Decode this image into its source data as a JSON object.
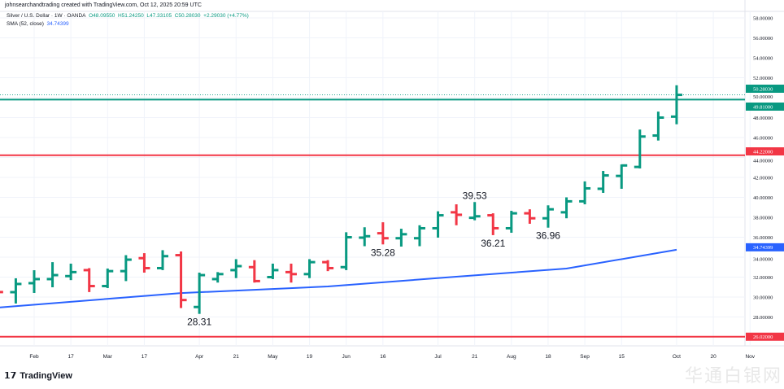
{
  "header": {
    "credit": "johnsearchandtrading created with TradingView.com, Oct 12, 2025 20:59 UTC",
    "symbol": "Silver / U.S. Dollar · 1W · OANDA",
    "open": "O48.09550",
    "high": "H51.24250",
    "low": "L47.33105",
    "close": "C50.28030",
    "change": "+2.29030 (+4.77%)",
    "sma_label": "SMA (52, close)",
    "sma_value": "34.74399"
  },
  "footer": {
    "logo": "TradingView",
    "watermark": "华通白银网"
  },
  "colors": {
    "up": "#089981",
    "down": "#f23645",
    "sma": "#2962ff",
    "resistance": "#089981",
    "support": "#f23645"
  },
  "chart_data": {
    "type": "ohlc",
    "title": "Silver / U.S. Dollar · 1W · OANDA",
    "ylim": [
      25,
      59
    ],
    "y_ticks": [
      "58.00000",
      "56.00000",
      "54.00000",
      "52.00000",
      "50.00000",
      "48.00000",
      "46.00000",
      "44.00000",
      "42.00000",
      "40.00000",
      "38.00000",
      "36.00000",
      "34.00000",
      "32.00000",
      "30.00000",
      "28.00000"
    ],
    "x_ticks": [
      {
        "w": 0,
        "label": "Feb"
      },
      {
        "w": 2,
        "label": "17"
      },
      {
        "w": 4,
        "label": "Mar"
      },
      {
        "w": 6,
        "label": "17"
      },
      {
        "w": 9,
        "label": "Apr"
      },
      {
        "w": 11,
        "label": "21"
      },
      {
        "w": 13,
        "label": "May"
      },
      {
        "w": 15,
        "label": "19"
      },
      {
        "w": 17,
        "label": "Jun"
      },
      {
        "w": 19,
        "label": "16"
      },
      {
        "w": 22,
        "label": "Jul"
      },
      {
        "w": 24,
        "label": "21"
      },
      {
        "w": 26,
        "label": "Aug"
      },
      {
        "w": 28,
        "label": "18"
      },
      {
        "w": 30,
        "label": "Sep"
      },
      {
        "w": 32,
        "label": "15"
      },
      {
        "w": 35,
        "label": "Oct"
      },
      {
        "w": 37,
        "label": "20"
      },
      {
        "w": 39,
        "label": "Nov"
      }
    ],
    "bars": [
      {
        "w": -2,
        "o": 30.6,
        "h": 30.9,
        "l": 30.3,
        "c": 30.5
      },
      {
        "w": -1,
        "o": 30.49,
        "h": 31.88,
        "l": 29.35,
        "c": 31.31
      },
      {
        "w": 0,
        "o": 31.39,
        "h": 32.69,
        "l": 30.41,
        "c": 31.8
      },
      {
        "w": 1,
        "o": 31.8,
        "h": 33.5,
        "l": 30.98,
        "c": 32.2
      },
      {
        "w": 2,
        "o": 32.1,
        "h": 33.35,
        "l": 31.7,
        "c": 32.5
      },
      {
        "w": 3,
        "o": 32.7,
        "h": 32.9,
        "l": 30.5,
        "c": 31.1
      },
      {
        "w": 4,
        "o": 31.1,
        "h": 32.86,
        "l": 30.9,
        "c": 32.6
      },
      {
        "w": 5,
        "o": 32.6,
        "h": 34.2,
        "l": 31.6,
        "c": 33.75
      },
      {
        "w": 6,
        "o": 33.9,
        "h": 34.4,
        "l": 32.45,
        "c": 32.9
      },
      {
        "w": 7,
        "o": 32.9,
        "h": 34.7,
        "l": 32.7,
        "c": 34.1
      },
      {
        "w": 8,
        "o": 34.2,
        "h": 34.57,
        "l": 28.9,
        "c": 29.7
      },
      {
        "w": 9,
        "o": 29.0,
        "h": 32.45,
        "l": 28.31,
        "c": 32.2
      },
      {
        "w": 10,
        "o": 31.8,
        "h": 32.5,
        "l": 31.45,
        "c": 32.3
      },
      {
        "w": 11,
        "o": 32.7,
        "h": 33.8,
        "l": 31.9,
        "c": 33.1
      },
      {
        "w": 12,
        "o": 33.0,
        "h": 33.7,
        "l": 31.45,
        "c": 31.6
      },
      {
        "w": 13,
        "o": 32.0,
        "h": 33.35,
        "l": 31.8,
        "c": 32.7
      },
      {
        "w": 14,
        "o": 32.5,
        "h": 33.35,
        "l": 31.45,
        "c": 32.3
      },
      {
        "w": 15,
        "o": 32.3,
        "h": 33.8,
        "l": 31.9,
        "c": 33.5
      },
      {
        "w": 16,
        "o": 33.5,
        "h": 33.7,
        "l": 32.6,
        "c": 32.9
      },
      {
        "w": 17,
        "o": 33.0,
        "h": 36.5,
        "l": 32.7,
        "c": 36.0
      },
      {
        "w": 18,
        "o": 35.96,
        "h": 37.0,
        "l": 35.1,
        "c": 36.1
      },
      {
        "w": 19,
        "o": 36.4,
        "h": 37.5,
        "l": 35.28,
        "c": 35.9
      },
      {
        "w": 20,
        "o": 35.9,
        "h": 36.85,
        "l": 35.06,
        "c": 36.3
      },
      {
        "w": 21,
        "o": 35.9,
        "h": 37.2,
        "l": 35.1,
        "c": 36.9
      },
      {
        "w": 22,
        "o": 36.9,
        "h": 38.6,
        "l": 35.96,
        "c": 38.2
      },
      {
        "w": 23,
        "o": 38.5,
        "h": 39.3,
        "l": 37.2,
        "c": 38.25
      },
      {
        "w": 24,
        "o": 37.95,
        "h": 39.53,
        "l": 37.7,
        "c": 38.1
      },
      {
        "w": 25,
        "o": 38.2,
        "h": 38.4,
        "l": 36.21,
        "c": 36.9
      },
      {
        "w": 26,
        "o": 36.9,
        "h": 38.65,
        "l": 36.45,
        "c": 38.4
      },
      {
        "w": 27,
        "o": 38.4,
        "h": 38.8,
        "l": 37.35,
        "c": 37.9
      },
      {
        "w": 28,
        "o": 37.9,
        "h": 39.2,
        "l": 36.96,
        "c": 38.8
      },
      {
        "w": 29,
        "o": 38.5,
        "h": 40.0,
        "l": 37.9,
        "c": 39.6
      },
      {
        "w": 30,
        "o": 39.6,
        "h": 41.6,
        "l": 39.3,
        "c": 40.9
      },
      {
        "w": 31,
        "o": 40.86,
        "h": 42.65,
        "l": 40.45,
        "c": 42.2
      },
      {
        "w": 32,
        "o": 42.15,
        "h": 43.3,
        "l": 40.86,
        "c": 43.2
      },
      {
        "w": 33,
        "o": 43.05,
        "h": 46.8,
        "l": 42.9,
        "c": 46.1
      },
      {
        "w": 34,
        "o": 46.2,
        "h": 48.6,
        "l": 45.7,
        "c": 48.0
      },
      {
        "w": 35,
        "o": 48.0955,
        "h": 51.2425,
        "l": 47.33105,
        "c": 50.2803
      }
    ],
    "sma": {
      "name": "SMA (52, close)",
      "points": [
        {
          "w": -2,
          "v": 28.94
        },
        {
          "w": 8,
          "v": 30.4
        },
        {
          "w": 16,
          "v": 31.06
        },
        {
          "w": 23,
          "v": 32.04
        },
        {
          "w": 29,
          "v": 32.86
        },
        {
          "w": 35,
          "v": 34.74399
        }
      ]
    },
    "hlines": [
      {
        "value": 49.81,
        "label": "49.81000",
        "color": "#089981",
        "style": "solid"
      },
      {
        "value": 44.22,
        "label": "44.22000",
        "color": "#f23645",
        "style": "solid"
      },
      {
        "value": 26.02,
        "label": "26.02000",
        "color": "#f23645",
        "style": "solid"
      }
    ],
    "last_price": {
      "value": 50.2803,
      "label": "50.28030"
    },
    "sma_label": "34.74399",
    "annotations": [
      {
        "w": 9,
        "value": 28.31,
        "text": "28.31",
        "pos": "below"
      },
      {
        "w": 19,
        "value": 35.28,
        "text": "35.28",
        "pos": "below"
      },
      {
        "w": 24,
        "value": 39.53,
        "text": "39.53",
        "pos": "above"
      },
      {
        "w": 25,
        "value": 36.21,
        "text": "36.21",
        "pos": "below"
      },
      {
        "w": 28,
        "value": 36.96,
        "text": "36.96",
        "pos": "below"
      }
    ]
  }
}
